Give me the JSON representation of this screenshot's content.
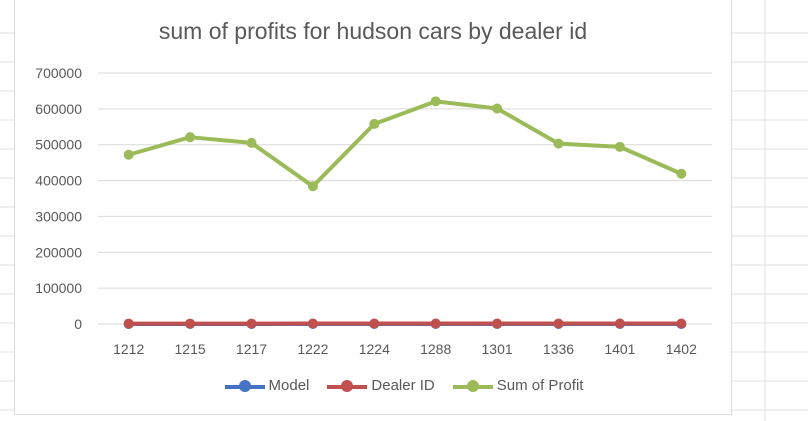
{
  "chart_data": {
    "type": "line",
    "title": "sum of profits for hudson cars by dealer id",
    "xlabel": "",
    "ylabel": "",
    "categories": [
      "1212",
      "1215",
      "1217",
      "1222",
      "1224",
      "1288",
      "1301",
      "1336",
      "1401",
      "1402"
    ],
    "ylim": [
      0,
      700000
    ],
    "yticks": [
      0,
      100000,
      200000,
      300000,
      400000,
      500000,
      600000,
      700000
    ],
    "ytick_labels": [
      "0",
      "100000",
      "200000",
      "300000",
      "400000",
      "500000",
      "600000",
      "700000"
    ],
    "grid": true,
    "legend_position": "bottom",
    "series": [
      {
        "name": "Model",
        "color": "#4472c4",
        "values": [
          4,
          4,
          4,
          4,
          4,
          4,
          4,
          4,
          4,
          4
        ]
      },
      {
        "name": "Dealer ID",
        "color": "#c0504d",
        "values": [
          1212,
          1215,
          1217,
          1222,
          1224,
          1288,
          1301,
          1336,
          1401,
          1402
        ]
      },
      {
        "name": "Sum of Profit",
        "color": "#9bbb59",
        "values": [
          472000,
          521000,
          505000,
          384000,
          558000,
          621000,
          601000,
          503000,
          494000,
          419000
        ]
      }
    ]
  }
}
